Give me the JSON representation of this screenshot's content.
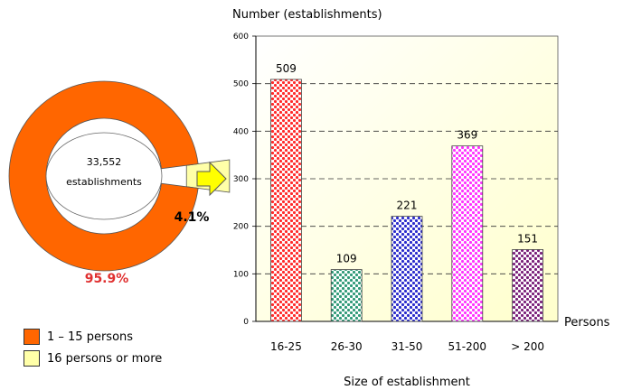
{
  "chart_data": [
    {
      "type": "pie",
      "center_label": [
        "33,552",
        "establishments"
      ],
      "slices": [
        {
          "label": "1 – 15 persons",
          "value": 95.9,
          "value_label": "95.9%",
          "color": "#ff6600",
          "label_color": "#e03030"
        },
        {
          "label": "16 persons or more",
          "value": 4.1,
          "value_label": "4.1%",
          "color": "#ffffa8",
          "label_color": "#000000"
        }
      ],
      "legend": "bottom-left"
    },
    {
      "type": "bar",
      "ylabel": "Number (establishments)",
      "xlabel": "Size of establishment",
      "x_unit": "Persons",
      "categories": [
        "16-25",
        "26-30",
        "31-50",
        "51-200",
        "> 200"
      ],
      "values": [
        509,
        109,
        221,
        369,
        151
      ],
      "data_labels": [
        "509",
        "109",
        "221",
        "369",
        "151"
      ],
      "colors": [
        "#ff2a2a",
        "#2f9a78",
        "#2b2bcc",
        "#ff33ff",
        "#7a1f7a"
      ],
      "ylim": [
        0,
        600
      ],
      "yticks": [
        0,
        100,
        200,
        300,
        400,
        500,
        600
      ],
      "grid": true,
      "plot_background": "#ffffcc"
    }
  ]
}
